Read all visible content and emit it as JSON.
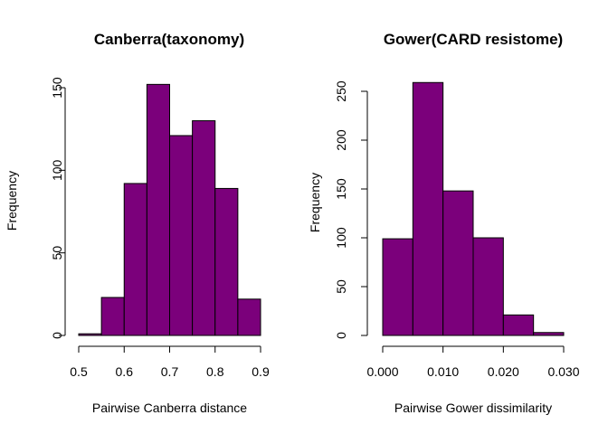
{
  "chart_data": [
    {
      "type": "bar",
      "title": "Canberra(taxonomy)",
      "xlabel": "Pairwise Canberra distance",
      "ylabel": "Frequency",
      "bar_color": "#7b007b",
      "xlim": [
        0.5,
        0.9
      ],
      "ylim": [
        0,
        150
      ],
      "x_ticks": [
        "0.5",
        "0.6",
        "0.7",
        "0.8",
        "0.9"
      ],
      "x_tick_values": [
        0.5,
        0.6,
        0.7,
        0.8,
        0.9
      ],
      "y_ticks": [
        "0",
        "50",
        "100",
        "150"
      ],
      "y_tick_values": [
        0,
        50,
        100,
        150
      ],
      "bins": [
        {
          "start": 0.5,
          "end": 0.55,
          "value": 1
        },
        {
          "start": 0.55,
          "end": 0.6,
          "value": 23
        },
        {
          "start": 0.6,
          "end": 0.65,
          "value": 92
        },
        {
          "start": 0.65,
          "end": 0.7,
          "value": 152
        },
        {
          "start": 0.7,
          "end": 0.75,
          "value": 121
        },
        {
          "start": 0.75,
          "end": 0.8,
          "value": 130
        },
        {
          "start": 0.8,
          "end": 0.85,
          "value": 89
        },
        {
          "start": 0.85,
          "end": 0.9,
          "value": 22
        }
      ]
    },
    {
      "type": "bar",
      "title": "Gower(CARD resistome)",
      "xlabel": "Pairwise Gower dissimilarity",
      "ylabel": "Frequency",
      "bar_color": "#7b007b",
      "xlim": [
        0.0,
        0.03
      ],
      "ylim": [
        0,
        250
      ],
      "x_ticks": [
        "0.000",
        "0.010",
        "0.020",
        "0.030"
      ],
      "x_tick_values": [
        0.0,
        0.01,
        0.02,
        0.03
      ],
      "y_ticks": [
        "0",
        "50",
        "100",
        "150",
        "200",
        "250"
      ],
      "y_tick_values": [
        0,
        50,
        100,
        150,
        200,
        250
      ],
      "bins": [
        {
          "start": 0.0,
          "end": 0.005,
          "value": 99
        },
        {
          "start": 0.005,
          "end": 0.01,
          "value": 259
        },
        {
          "start": 0.01,
          "end": 0.015,
          "value": 148
        },
        {
          "start": 0.015,
          "end": 0.02,
          "value": 100
        },
        {
          "start": 0.02,
          "end": 0.025,
          "value": 21
        },
        {
          "start": 0.025,
          "end": 0.03,
          "value": 3
        }
      ]
    }
  ]
}
